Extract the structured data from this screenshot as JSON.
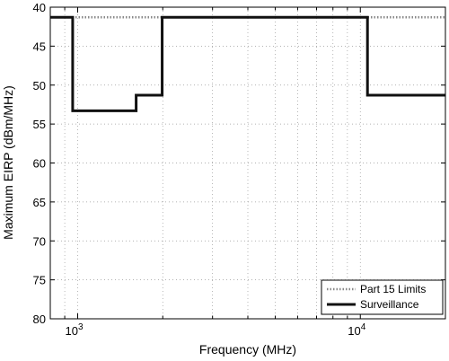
{
  "chart_data": {
    "type": "line",
    "xlabel": "Frequency  (MHz)",
    "ylabel": "Maximum EIRP (dBm/MHz)",
    "x_scale": "log",
    "xlim": [
      800,
      20000
    ],
    "ylim": [
      80,
      40
    ],
    "y_inverted": true,
    "x_ticks": [
      {
        "value": 1000,
        "mantissa": "10",
        "exponent": "3"
      },
      {
        "value": 10000,
        "mantissa": "10",
        "exponent": "4"
      }
    ],
    "y_ticks": [
      "40",
      "45",
      "50",
      "55",
      "60",
      "65",
      "70",
      "75",
      "80"
    ],
    "grid": true,
    "legend_position": "bottom-right",
    "series": [
      {
        "name": "Part 15 Limits",
        "style": "dotted",
        "color": "#888888",
        "x": [
          800,
          20000
        ],
        "y": [
          41.3,
          41.3
        ]
      },
      {
        "name": "Surveillance",
        "style": "solid",
        "color": "#111111",
        "x": [
          800,
          960,
          960,
          1610,
          1610,
          1990,
          1990,
          10600,
          10600,
          20000
        ],
        "y": [
          41.3,
          41.3,
          53.3,
          53.3,
          51.3,
          51.3,
          41.3,
          41.3,
          51.3,
          51.3
        ]
      }
    ]
  }
}
